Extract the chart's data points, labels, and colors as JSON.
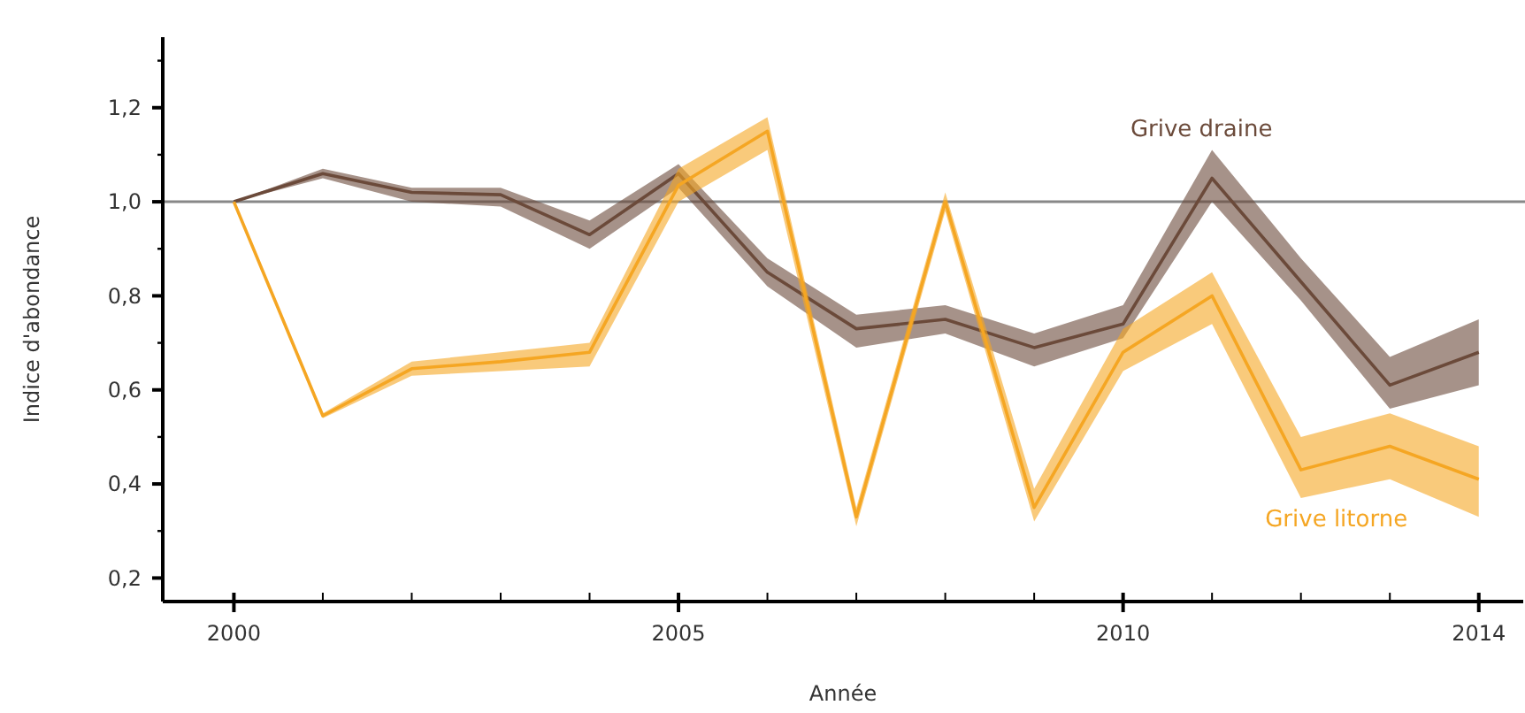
{
  "chart_data": {
    "type": "line",
    "xlabel": "Année",
    "ylabel": "Indice d'abondance",
    "x": [
      2000,
      2001,
      2002,
      2003,
      2004,
      2005,
      2006,
      2007,
      2008,
      2009,
      2010,
      2011,
      2012,
      2013,
      2014
    ],
    "series": [
      {
        "name": "Grive draine",
        "color": "#6b4a3a",
        "values": [
          1.0,
          1.06,
          1.02,
          1.015,
          0.93,
          1.06,
          0.85,
          0.73,
          0.75,
          0.69,
          0.74,
          1.05,
          0.83,
          0.61,
          0.68
        ],
        "lower": [
          1.0,
          1.05,
          1.0,
          0.99,
          0.9,
          1.03,
          0.82,
          0.69,
          0.72,
          0.65,
          0.71,
          1.0,
          0.79,
          0.56,
          0.61
        ],
        "upper": [
          1.0,
          1.07,
          1.03,
          1.03,
          0.96,
          1.08,
          0.88,
          0.76,
          0.78,
          0.72,
          0.78,
          1.11,
          0.88,
          0.67,
          0.75
        ]
      },
      {
        "name": "Grive litorne",
        "color": "#f5a623",
        "values": [
          1.0,
          0.545,
          0.645,
          0.66,
          0.68,
          1.035,
          1.15,
          0.33,
          1.0,
          0.35,
          0.68,
          0.8,
          0.43,
          0.48,
          0.41
        ],
        "lower": [
          1.0,
          0.54,
          0.63,
          0.64,
          0.65,
          1.0,
          1.11,
          0.31,
          0.98,
          0.32,
          0.64,
          0.74,
          0.37,
          0.41,
          0.33
        ],
        "upper": [
          1.0,
          0.55,
          0.66,
          0.68,
          0.7,
          1.07,
          1.18,
          0.35,
          1.02,
          0.39,
          0.73,
          0.85,
          0.5,
          0.55,
          0.48
        ]
      }
    ],
    "xlim": [
      1999.2,
      2014.5
    ],
    "xticks": [
      2000,
      {
        "value": 2001,
        "label": null
      },
      {
        "value": 2002,
        "label": null
      },
      {
        "value": 2003,
        "label": null
      },
      {
        "value": 2004,
        "label": null
      },
      2005,
      {
        "value": 2006,
        "label": null
      },
      {
        "value": 2007,
        "label": null
      },
      {
        "value": 2008,
        "label": null
      },
      {
        "value": 2009,
        "label": null
      },
      2010,
      {
        "value": 2011,
        "label": null
      },
      {
        "value": 2012,
        "label": null
      },
      {
        "value": 2013,
        "label": null
      },
      2014
    ],
    "ylim": [
      0.15,
      1.35
    ],
    "yticks": [
      {
        "value": 0.2,
        "label": "0,2"
      },
      {
        "value": 0.3,
        "label": null
      },
      {
        "value": 0.4,
        "label": "0,4"
      },
      {
        "value": 0.5,
        "label": null
      },
      {
        "value": 0.6,
        "label": "0,6"
      },
      {
        "value": 0.7,
        "label": null
      },
      {
        "value": 0.8,
        "label": "0,8"
      },
      {
        "value": 0.9,
        "label": null
      },
      {
        "value": 1.0,
        "label": "1,0"
      },
      {
        "value": 1.1,
        "label": null
      },
      {
        "value": 1.2,
        "label": "1,2"
      },
      {
        "value": 1.3,
        "label": null
      }
    ],
    "ref_lines": [
      {
        "axis": "y",
        "value": 1.0,
        "color": "#888888"
      }
    ],
    "grid": false,
    "legend": false,
    "marker": "none",
    "line_style": "solid"
  }
}
